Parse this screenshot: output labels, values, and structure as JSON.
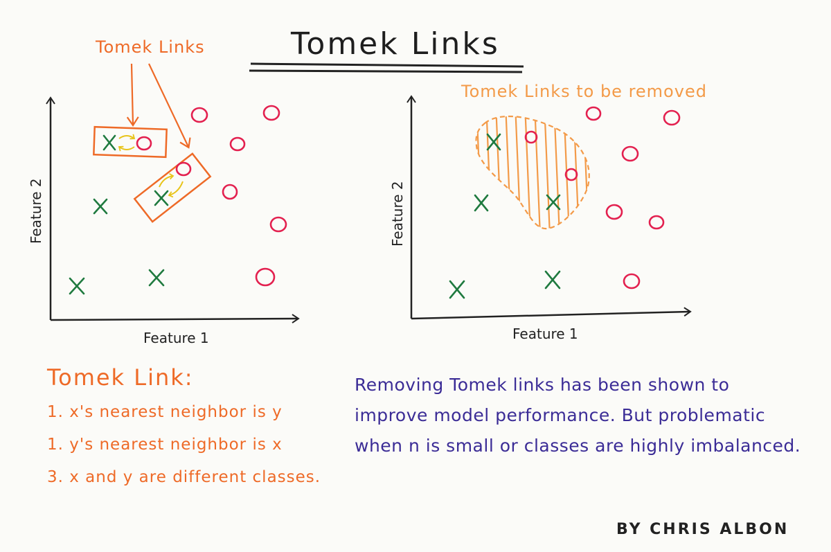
{
  "title": "Tomek Links",
  "callouts": {
    "tomek_links": "Tomek Links",
    "to_be_removed": "Tomek Links to be removed"
  },
  "axes": {
    "x_label": "Feature 1",
    "y_label": "Feature 2"
  },
  "definition": {
    "heading": "Tomek Link:",
    "items": [
      "1. x's nearest neighbor is y",
      "1. y's nearest neighbor is x",
      "3. x and y are different classes."
    ]
  },
  "note": [
    "Removing Tomek links has been shown to",
    "improve model performance. But problematic",
    "when n is small or classes are highly imbalanced."
  ],
  "byline": "BY CHRIS ALBON",
  "colors": {
    "x_class": "#1f7a3f",
    "o_class": "#e3204f",
    "callout": "#ee6a27",
    "removed_region": "#f39a48",
    "link_arrows": "#e8c419",
    "note": "#3b2c96",
    "ink": "#222222"
  },
  "legend_symbols": {
    "x_class": "x-mark",
    "o_class": "o-mark"
  }
}
